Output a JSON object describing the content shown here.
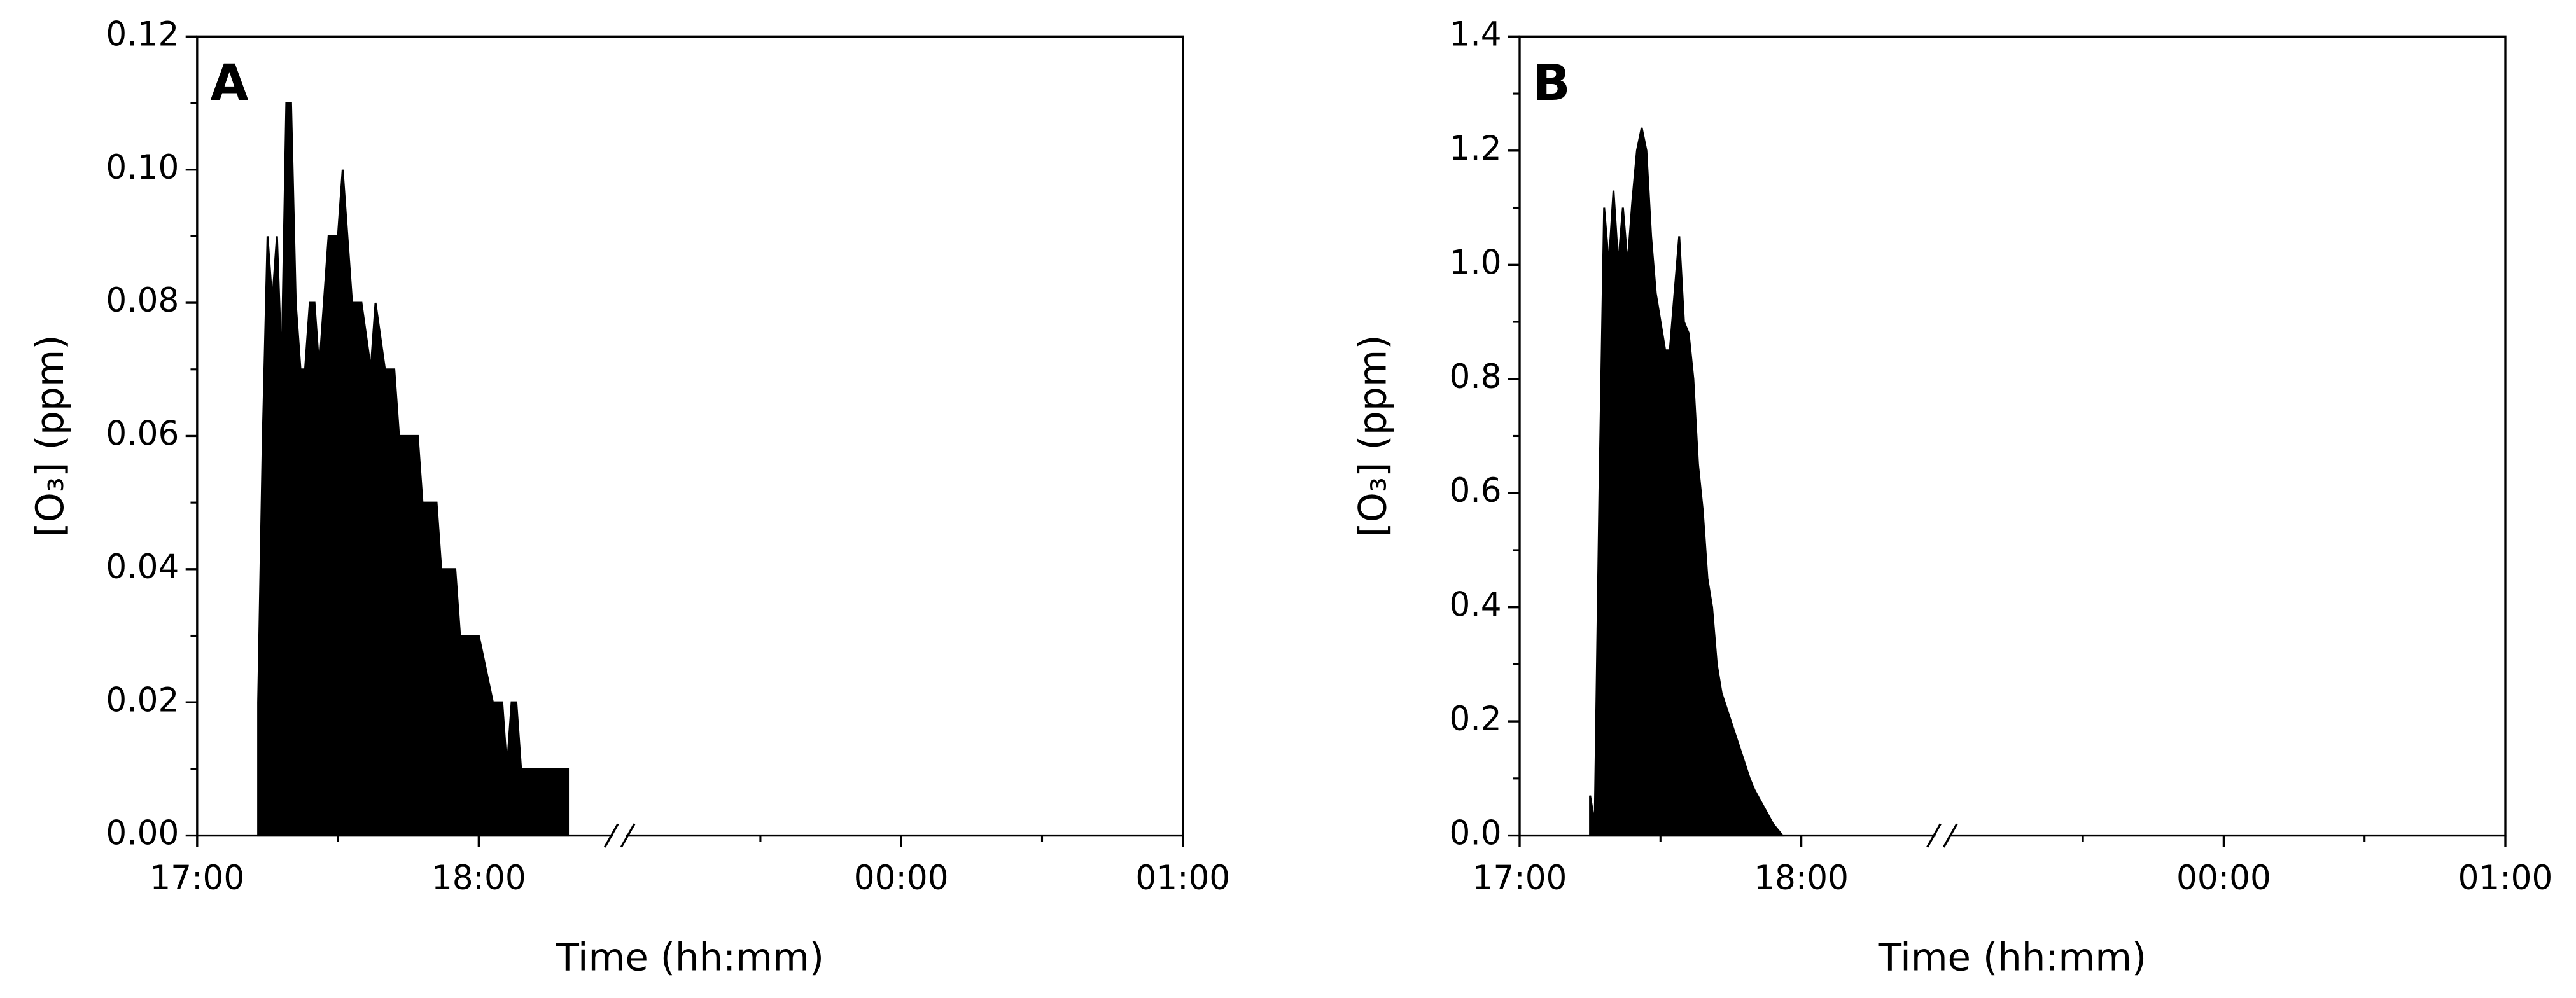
{
  "chart_data": [
    {
      "type": "area",
      "panel_label": "A",
      "x_label": "Time (hh:mm)",
      "y_label": "[O₃] (ppm)",
      "color": "#000000",
      "xlim": [
        "17:00",
        "01:00"
      ],
      "xbreak": [
        "18:30",
        "23:00"
      ],
      "xticks": [
        "17:00",
        "18:00",
        "00:00",
        "01:00"
      ],
      "xminor": [
        "17:30",
        "23:30",
        "00:30"
      ],
      "ylim": [
        0,
        0.12
      ],
      "yticks": [
        {
          "value": 0,
          "label": "0.00"
        },
        {
          "value": 0.02,
          "label": "0.02"
        },
        {
          "value": 0.04,
          "label": "0.04"
        },
        {
          "value": 0.06,
          "label": "0.06"
        },
        {
          "value": 0.08,
          "label": "0.08"
        },
        {
          "value": 0.1,
          "label": "0.10"
        },
        {
          "value": 0.12,
          "label": "0.12"
        }
      ],
      "x": [
        "17:13",
        "17:14",
        "17:15",
        "17:16",
        "17:17",
        "17:18",
        "17:19",
        "17:20",
        "17:21",
        "17:22",
        "17:23",
        "17:24",
        "17:25",
        "17:26",
        "17:27",
        "17:28",
        "17:30",
        "17:31",
        "17:32",
        "17:33",
        "17:35",
        "17:37",
        "17:38",
        "17:40",
        "17:42",
        "17:43",
        "17:47",
        "17:48",
        "17:51",
        "17:52",
        "17:55",
        "17:56",
        "18:00",
        "18:03",
        "18:05",
        "18:06",
        "18:07",
        "18:08",
        "18:09",
        "18:12",
        "18:19"
      ],
      "values": [
        0.02,
        0.06,
        0.09,
        0.08,
        0.09,
        0.07,
        0.11,
        0.11,
        0.08,
        0.07,
        0.07,
        0.08,
        0.08,
        0.07,
        0.08,
        0.09,
        0.09,
        0.1,
        0.09,
        0.08,
        0.08,
        0.07,
        0.08,
        0.07,
        0.07,
        0.06,
        0.06,
        0.05,
        0.05,
        0.04,
        0.04,
        0.03,
        0.03,
        0.02,
        0.02,
        0.01,
        0.02,
        0.02,
        0.01,
        0.01,
        0.01
      ]
    },
    {
      "type": "area",
      "panel_label": "B",
      "x_label": "Time (hh:mm)",
      "y_label": "[O₃] (ppm)",
      "color": "#000000",
      "xlim": [
        "17:00",
        "01:00"
      ],
      "xbreak": [
        "18:30",
        "23:00"
      ],
      "xticks": [
        "17:00",
        "18:00",
        "00:00",
        "01:00"
      ],
      "xminor": [
        "17:30",
        "23:30",
        "00:30"
      ],
      "ylim": [
        0,
        1.4
      ],
      "yticks": [
        {
          "value": 0,
          "label": "0.0"
        },
        0.2,
        0.4,
        0.6,
        0.8,
        {
          "value": 1,
          "label": "1.0"
        },
        1.2,
        1.4
      ],
      "x": [
        "17:15",
        "17:16",
        "17:17",
        "17:18",
        "17:19",
        "17:20",
        "17:21",
        "17:22",
        "17:23",
        "17:24",
        "17:25",
        "17:26",
        "17:27",
        "17:28",
        "17:29",
        "17:30",
        "17:31",
        "17:32",
        "17:33",
        "17:34",
        "17:35",
        "17:36",
        "17:37",
        "17:38",
        "17:39",
        "17:40",
        "17:41",
        "17:42",
        "17:43",
        "17:45",
        "17:47",
        "17:49",
        "17:50",
        "17:52",
        "17:54",
        "17:56"
      ],
      "values": [
        0.07,
        0.02,
        0.6,
        1.1,
        1.0,
        1.13,
        1.0,
        1.1,
        1.0,
        1.11,
        1.2,
        1.24,
        1.2,
        1.05,
        0.95,
        0.9,
        0.85,
        0.85,
        0.95,
        1.05,
        0.9,
        0.88,
        0.8,
        0.65,
        0.57,
        0.45,
        0.4,
        0.3,
        0.25,
        0.2,
        0.15,
        0.1,
        0.08,
        0.05,
        0.02,
        0
      ]
    }
  ]
}
